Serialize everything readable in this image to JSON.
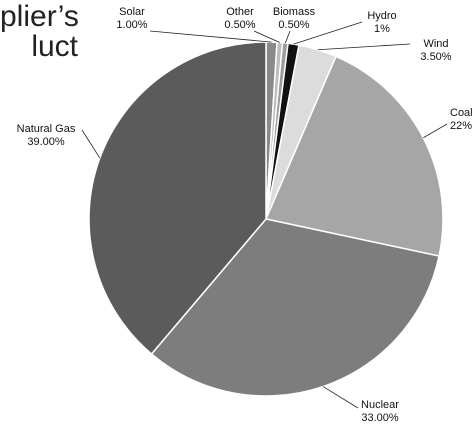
{
  "title_lines": [
    "plier’s",
    "luct"
  ],
  "chart_data": {
    "type": "pie",
    "title": "",
    "series": [
      {
        "name": "Solar",
        "value": 1.0,
        "label": "1.00%",
        "color": "#8a8a8a"
      },
      {
        "name": "Other",
        "value": 0.5,
        "label": "0.50%",
        "color": "#bdbdbd"
      },
      {
        "name": "Biomass",
        "value": 0.5,
        "label": "0.50%",
        "color": "#9c9c9c"
      },
      {
        "name": "Hydro",
        "value": 1,
        "label": "1%",
        "color": "#111111"
      },
      {
        "name": "Wind",
        "value": 3.5,
        "label": "3.50%",
        "color": "#dcdcdc"
      },
      {
        "name": "Coal",
        "value": 22,
        "label": "22%",
        "color": "#a6a6a6"
      },
      {
        "name": "Nuclear",
        "value": 33.0,
        "label": "33.00%",
        "color": "#7d7d7d"
      },
      {
        "name": "Natural Gas",
        "value": 39.0,
        "label": "39.00%",
        "color": "#5b5b5b"
      }
    ],
    "start": "top",
    "direction": "clockwise"
  }
}
